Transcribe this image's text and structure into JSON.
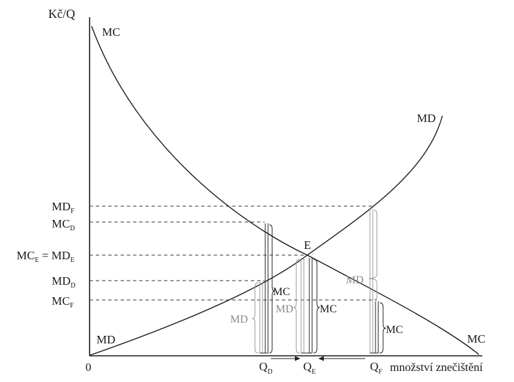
{
  "axes": {
    "y_label": "Kč/Q",
    "x_label": "množství znečištění",
    "origin_label": "0"
  },
  "curves": {
    "mc_top_label": "MC",
    "mc_bottom_label": "MC",
    "md_top_label": "MD",
    "md_bottom_label": "MD"
  },
  "y_levels": [
    {
      "main": "MD",
      "sub": "F"
    },
    {
      "main": "MC",
      "sub": "D"
    },
    {
      "main": "MC",
      "sub": "E",
      "extra_main": " = MD",
      "extra_sub": "E"
    },
    {
      "main": "MD",
      "sub": "D"
    },
    {
      "main": "MC",
      "sub": "F"
    }
  ],
  "x_points": [
    {
      "main": "Q",
      "sub": "D"
    },
    {
      "main": "Q",
      "sub": "E"
    },
    {
      "main": "Q",
      "sub": "F"
    }
  ],
  "equilibrium_label": "E",
  "brace_labels": {
    "qd_mc": "MC",
    "qd_md": "MD",
    "qe_md": "MD",
    "qe_mc": "MC",
    "qf_md": "MD",
    "qf_mc": "MC"
  }
}
